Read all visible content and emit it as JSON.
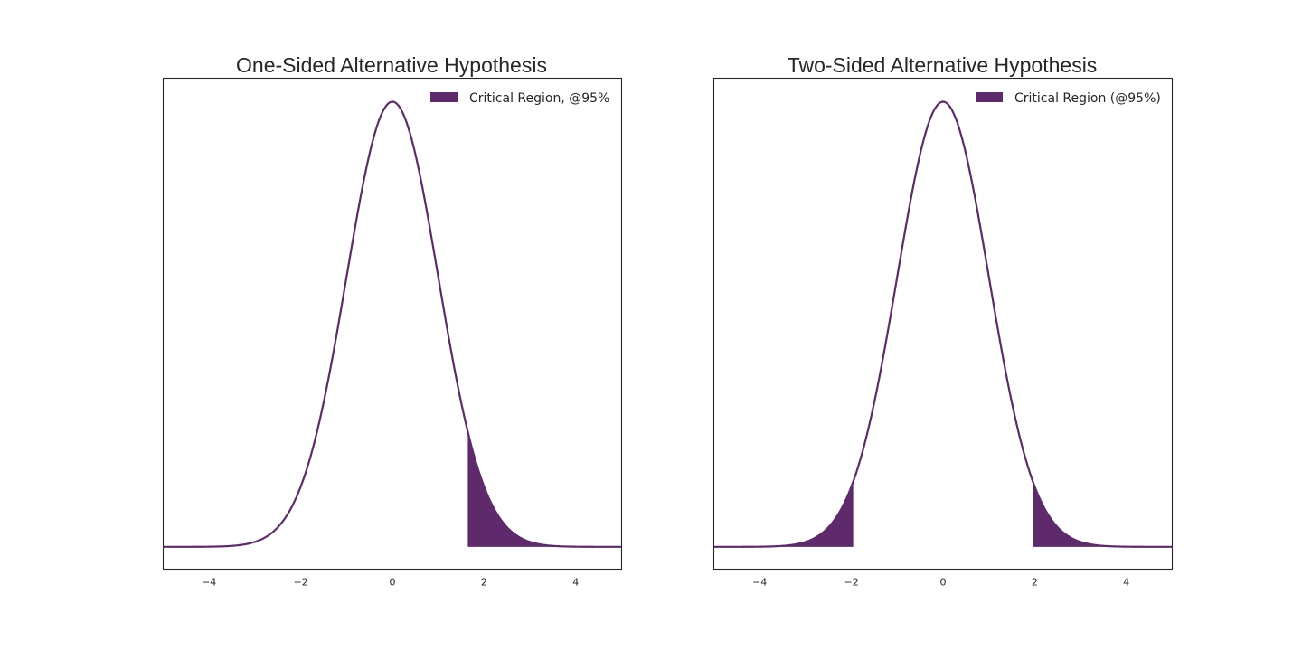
{
  "chart_data": [
    {
      "type": "area",
      "title": "One-Sided Alternative Hypothesis",
      "xlabel": "",
      "ylabel": "",
      "xlim": [
        -5,
        5
      ],
      "ylim": [
        -0.02,
        0.42
      ],
      "xticks": [
        -4,
        -2,
        0,
        2,
        4
      ],
      "xtick_labels": [
        "−4",
        "−2",
        "0",
        "2",
        "4"
      ],
      "yticks": [],
      "grid": false,
      "legend_position": "top-right",
      "curve": {
        "distribution": "standard normal pdf",
        "x": [
          -5,
          -4.5,
          -4,
          -3.5,
          -3,
          -2.5,
          -2,
          -1.5,
          -1,
          -0.5,
          0,
          0.5,
          1,
          1.5,
          2,
          2.5,
          3,
          3.5,
          4,
          4.5,
          5
        ],
        "y": [
          1.5e-06,
          1.6e-05,
          0.000134,
          0.000873,
          0.004432,
          0.017528,
          0.053991,
          0.129518,
          0.241971,
          0.352065,
          0.398942,
          0.352065,
          0.241971,
          0.129518,
          0.053991,
          0.017528,
          0.004432,
          0.000873,
          0.000134,
          1.6e-05,
          1.5e-06
        ],
        "color": "#5f2a6c"
      },
      "critical_regions": [
        [
          1.645,
          5
        ]
      ],
      "fill_color": "#5f2a6c",
      "legend": [
        "Critical Region, @95%"
      ]
    },
    {
      "type": "area",
      "title": "Two-Sided Alternative Hypothesis",
      "xlabel": "",
      "ylabel": "",
      "xlim": [
        -5,
        5
      ],
      "ylim": [
        -0.02,
        0.42
      ],
      "xticks": [
        -4,
        -2,
        0,
        2,
        4
      ],
      "xtick_labels": [
        "−4",
        "−2",
        "0",
        "2",
        "4"
      ],
      "yticks": [],
      "grid": false,
      "legend_position": "top-right",
      "curve": {
        "distribution": "standard normal pdf",
        "x": [
          -5,
          -4.5,
          -4,
          -3.5,
          -3,
          -2.5,
          -2,
          -1.5,
          -1,
          -0.5,
          0,
          0.5,
          1,
          1.5,
          2,
          2.5,
          3,
          3.5,
          4,
          4.5,
          5
        ],
        "y": [
          1.5e-06,
          1.6e-05,
          0.000134,
          0.000873,
          0.004432,
          0.017528,
          0.053991,
          0.129518,
          0.241971,
          0.352065,
          0.398942,
          0.352065,
          0.241971,
          0.129518,
          0.053991,
          0.017528,
          0.004432,
          0.000873,
          0.000134,
          1.6e-05,
          1.5e-06
        ],
        "color": "#5f2a6c"
      },
      "critical_regions": [
        [
          -5,
          -1.96
        ],
        [
          1.96,
          5
        ]
      ],
      "fill_color": "#5f2a6c",
      "legend": [
        "Critical Region (@95%)"
      ]
    }
  ]
}
